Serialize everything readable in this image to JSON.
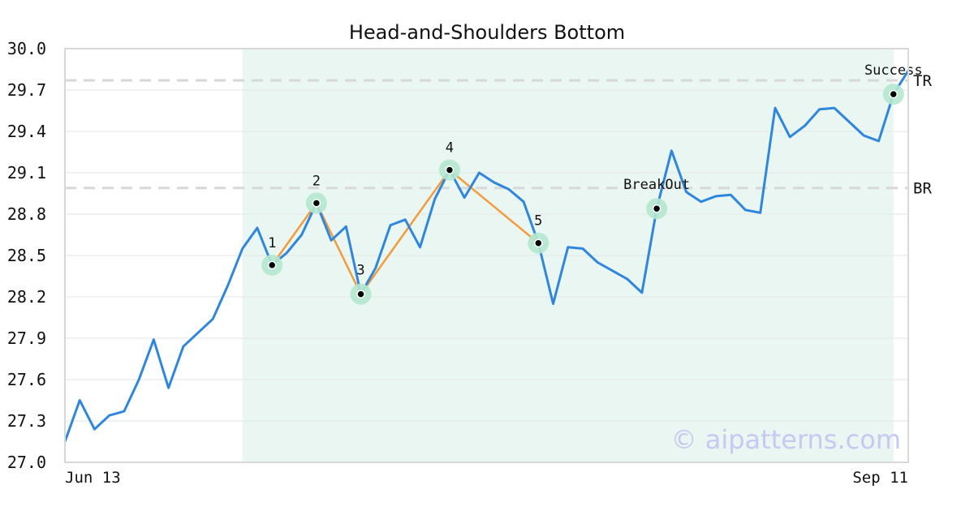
{
  "chart_data": {
    "type": "line",
    "title": "Head-and-Shoulders Bottom",
    "ylim": [
      27.0,
      30.0
    ],
    "yticks": [
      "27.0",
      "27.3",
      "27.6",
      "27.9",
      "28.2",
      "28.5",
      "28.8",
      "29.1",
      "29.4",
      "29.7",
      "30.0"
    ],
    "x_range": [
      "Jun 13",
      "Sep 11"
    ],
    "x_tick_labels": [
      "Jun 13",
      "Sep 11"
    ],
    "grid": true,
    "colors": {
      "price": "#2e86de",
      "pattern": "#f39c3c",
      "highlight": "#e9f6f1",
      "marker_halo": "#b5e8cf",
      "level_line": "#d8d8d8",
      "watermark": "#c8c8f2"
    },
    "series": [
      {
        "values": [
          27.15,
          27.45,
          27.24,
          27.34,
          27.37,
          27.6,
          27.89,
          27.54,
          27.84,
          27.94,
          28.04,
          28.28,
          28.55,
          28.7,
          28.43,
          28.52,
          28.65,
          28.88,
          28.61,
          28.71,
          28.22,
          28.41,
          28.72,
          28.76,
          28.56,
          28.91,
          29.12,
          28.92,
          29.1,
          29.03,
          28.98,
          28.89,
          28.59,
          28.15,
          28.56,
          28.55,
          28.45,
          28.39,
          28.33,
          28.23,
          28.84,
          29.26,
          28.96,
          28.89,
          28.93,
          28.94,
          28.83,
          28.81,
          29.57,
          29.36,
          29.44,
          29.56,
          29.57,
          29.47,
          29.37,
          29.33,
          29.67,
          29.84
        ]
      }
    ],
    "pattern_points": [
      {
        "label": "1",
        "index": 14,
        "value": 28.43
      },
      {
        "label": "2",
        "index": 17,
        "value": 28.88
      },
      {
        "label": "3",
        "index": 20,
        "value": 28.22
      },
      {
        "label": "4",
        "index": 26,
        "value": 29.12
      },
      {
        "label": "5",
        "index": 32,
        "value": 28.59
      }
    ],
    "events": [
      {
        "label": "BreakOut",
        "index": 40,
        "value": 28.84
      },
      {
        "label": "Success",
        "index": 56,
        "value": 29.67
      }
    ],
    "levels": [
      {
        "label": "TR",
        "value": 29.77
      },
      {
        "label": "BR",
        "value": 28.99
      }
    ],
    "highlight_range": [
      12,
      56
    ],
    "watermark": "© aipatterns.com"
  }
}
